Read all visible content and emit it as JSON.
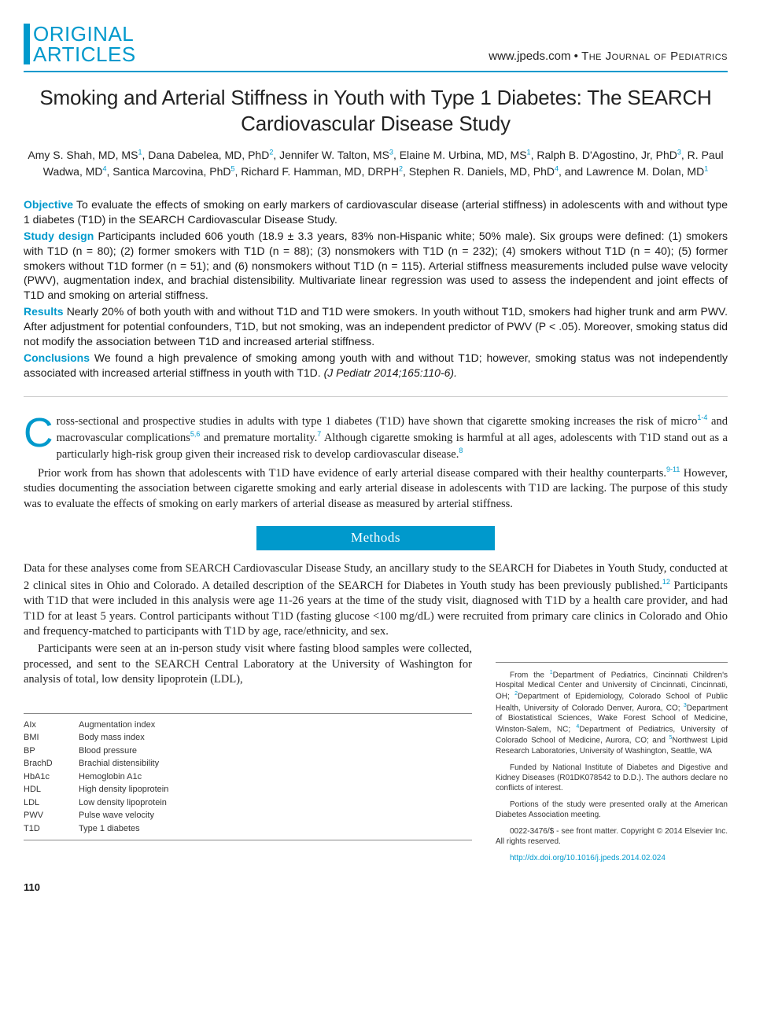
{
  "header": {
    "badge_line1": "ORIGINAL",
    "badge_line2": "ARTICLES",
    "journal_url": "www.jpeds.com",
    "journal_sep": " • ",
    "journal_name": "The Journal of Pediatrics"
  },
  "title": "Smoking and Arterial Stiffness in Youth with Type 1 Diabetes: The SEARCH Cardiovascular Disease Study",
  "authors_html": "Amy S. Shah, MD, MS<sup>1</sup>, Dana Dabelea, MD, PhD<sup>2</sup>, Jennifer W. Talton, MS<sup>3</sup>, Elaine M. Urbina, MD, MS<sup>1</sup>, Ralph B. D'Agostino, Jr, PhD<sup>3</sup>, R. Paul Wadwa, MD<sup>4</sup>, Santica Marcovina, PhD<sup>5</sup>, Richard F. Hamman, MD, DRPH<sup>2</sup>, Stephen R. Daniels, MD, PhD<sup>4</sup>, and Lawrence M. Dolan, MD<sup>1</sup>",
  "abstract": {
    "objective": {
      "label": "Objective",
      "text": " To evaluate the effects of smoking on early markers of cardiovascular disease (arterial stiffness) in adolescents with and without type 1 diabetes (T1D) in the SEARCH Cardiovascular Disease Study."
    },
    "design": {
      "label": "Study design",
      "text": " Participants included 606 youth (18.9 ± 3.3 years, 83% non-Hispanic white; 50% male). Six groups were defined: (1) smokers with T1D (n = 80); (2) former smokers with T1D (n = 88); (3) nonsmokers with T1D (n = 232); (4) smokers without T1D (n = 40); (5) former smokers without T1D former (n = 51); and (6) nonsmokers without T1D (n = 115). Arterial stiffness measurements included pulse wave velocity (PWV), augmentation index, and brachial distensibility. Multivariate linear regression was used to assess the independent and joint effects of T1D and smoking on arterial stiffness."
    },
    "results": {
      "label": "Results",
      "text": " Nearly 20% of both youth with and without T1D and T1D were smokers. In youth without T1D, smokers had higher trunk and arm PWV. After adjustment for potential confounders, T1D, but not smoking, was an independent predictor of PWV (P < .05). Moreover, smoking status did not modify the association between T1D and increased arterial stiffness."
    },
    "conclusions": {
      "label": "Conclusions",
      "text": " We found a high prevalence of smoking among youth with and without T1D; however, smoking status was not independently associated with increased arterial stiffness in youth with T1D. ",
      "citation": "(J Pediatr 2014;165:110-6)."
    }
  },
  "body": {
    "p1_html": "ross-sectional and prospective studies in adults with type 1 diabetes (T1D) have shown that cigarette smoking increases the risk of micro<sup>1-4</sup> and macrovascular complications<sup>5,6</sup> and premature mortality.<sup>7</sup> Although cigarette smoking is harmful at all ages, adolescents with T1D stand out as a particularly high-risk group given their increased risk to develop cardiovascular disease.<sup>8</sup>",
    "p2_html": "Prior work from has shown that adolescents with T1D have evidence of early arterial disease compared with their healthy counterparts.<sup>9-11</sup> However, studies documenting the association between cigarette smoking and early arterial disease in adolescents with T1D are lacking. The purpose of this study was to evaluate the effects of smoking on early markers of arterial disease as measured by arterial stiffness.",
    "methods_heading": "Methods",
    "p3_html": "Data for these analyses come from SEARCH Cardiovascular Disease Study, an ancillary study to the SEARCH for Diabetes in Youth Study, conducted at 2 clinical sites in Ohio and Colorado. A detailed description of the SEARCH for Diabetes in Youth study has been previously published.<sup>12</sup> Participants with T1D that were included in this analysis were age 11-26 years at the time of the study visit, diagnosed with T1D by a health care provider, and had T1D for at least 5 years. Control participants without T1D (fasting glucose <100 mg/dL) were recruited from primary care clinics in Colorado and Ohio and frequency-matched to participants with T1D by age, race/ethnicity, and sex.",
    "p4_html": "Participants were seen at an in-person study visit where fasting blood samples were collected, processed, and sent to the SEARCH Central Laboratory at the University of Washington for analysis of total, low density lipoprotein (LDL),"
  },
  "abbreviations": [
    {
      "key": "AIx",
      "val": "Augmentation index"
    },
    {
      "key": "BMI",
      "val": "Body mass index"
    },
    {
      "key": "BP",
      "val": "Blood pressure"
    },
    {
      "key": "BrachD",
      "val": "Brachial distensibility"
    },
    {
      "key": "HbA1c",
      "val": "Hemoglobin A1c"
    },
    {
      "key": "HDL",
      "val": "High density lipoprotein"
    },
    {
      "key": "LDL",
      "val": "Low density lipoprotein"
    },
    {
      "key": "PWV",
      "val": "Pulse wave velocity"
    },
    {
      "key": "T1D",
      "val": "Type 1 diabetes"
    }
  ],
  "affiliations": {
    "from_html": "From the <sup>1</sup>Department of Pediatrics, Cincinnati Children's Hospital Medical Center and University of Cincinnati, Cincinnati, OH; <sup>2</sup>Department of Epidemiology, Colorado School of Public Health, University of Colorado Denver, Aurora, CO; <sup>3</sup>Department of Biostatistical Sciences, Wake Forest School of Medicine, Winston-Salem, NC; <sup>4</sup>Department of Pediatrics, University of Colorado School of Medicine, Aurora, CO; and <sup>5</sup>Northwest Lipid Research Laboratories, University of Washington, Seattle, WA",
    "funding": "Funded by National Institute of Diabetes and Digestive and Kidney Diseases (R01DK078542 to D.D.). The authors declare no conflicts of interest.",
    "presented": "Portions of the study were presented orally at the American Diabetes Association meeting.",
    "copyright": "0022-3476/$ - see front matter. Copyright © 2014 Elsevier Inc. All rights reserved.",
    "doi": "http://dx.doi.org/10.1016/j.jpeds.2014.02.024"
  },
  "page_number": "110",
  "colors": {
    "accent": "#0099cc",
    "text": "#1a1a1a",
    "rule": "#888888"
  }
}
